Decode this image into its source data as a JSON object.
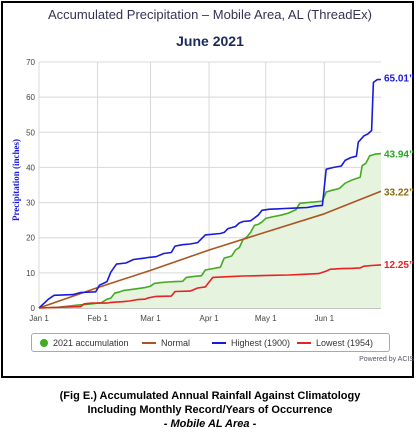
{
  "chart_data": {
    "type": "line",
    "title": "Accumulated Precipitation – Mobile Area, AL (ThreadEx)",
    "subtitle": "June 2021",
    "ylabel": "Precipitation (inches)",
    "xlabel": "",
    "ylim": [
      0,
      70
    ],
    "yticks": [
      "0",
      "10",
      "20",
      "30",
      "40",
      "50",
      "60",
      "70"
    ],
    "xticks": [
      {
        "label": "Jan 1",
        "day": 0
      },
      {
        "label": "Feb 1",
        "day": 31
      },
      {
        "label": "Mar 1",
        "day": 59
      },
      {
        "label": "Apr 1",
        "day": 90
      },
      {
        "label": "May 1",
        "day": 120
      },
      {
        "label": "Jun 1",
        "day": 151
      }
    ],
    "xlim": [
      0,
      181
    ],
    "grid": true,
    "legend_position": "bottom",
    "credit": "Powered by ACIS",
    "series": [
      {
        "name": "2021 accumulation",
        "color": "#44aa22",
        "fill": "#e6f3df",
        "end_label": "43.94”",
        "points": [
          [
            0,
            0
          ],
          [
            10,
            0.2
          ],
          [
            20,
            0.8
          ],
          [
            28,
            1.2
          ],
          [
            33,
            1.5
          ],
          [
            36,
            2.5
          ],
          [
            38,
            2.8
          ],
          [
            40,
            4.2
          ],
          [
            42,
            4.5
          ],
          [
            45,
            5
          ],
          [
            48,
            5.2
          ],
          [
            52,
            5.5
          ],
          [
            56,
            5.8
          ],
          [
            59,
            6.2
          ],
          [
            61,
            7
          ],
          [
            64,
            7.2
          ],
          [
            68,
            7.4
          ],
          [
            72,
            7.5
          ],
          [
            76,
            7.6
          ],
          [
            78,
            8.7
          ],
          [
            82,
            9
          ],
          [
            86,
            9.2
          ],
          [
            88,
            10.8
          ],
          [
            92,
            11.2
          ],
          [
            96,
            11.6
          ],
          [
            98,
            14.2
          ],
          [
            102,
            14.8
          ],
          [
            104,
            16.5
          ],
          [
            106,
            17.2
          ],
          [
            108,
            19.5
          ],
          [
            110,
            20.2
          ],
          [
            112,
            21.5
          ],
          [
            114,
            23.5
          ],
          [
            116,
            23.8
          ],
          [
            118,
            24.5
          ],
          [
            120,
            25.5
          ],
          [
            124,
            26
          ],
          [
            128,
            26.4
          ],
          [
            132,
            27
          ],
          [
            136,
            28
          ],
          [
            138,
            29.8
          ],
          [
            142,
            30
          ],
          [
            146,
            30.2
          ],
          [
            150,
            30.4
          ],
          [
            152,
            33
          ],
          [
            155,
            33.5
          ],
          [
            159,
            34
          ],
          [
            162,
            35.5
          ],
          [
            166,
            36.5
          ],
          [
            170,
            37.2
          ],
          [
            171,
            40.5
          ],
          [
            173,
            41.2
          ],
          [
            175,
            43.3
          ],
          [
            178,
            43.8
          ],
          [
            181,
            43.94
          ]
        ]
      },
      {
        "name": "Normal",
        "color": "#aa5522",
        "end_label": "33.22”",
        "points": [
          [
            0,
            0
          ],
          [
            31,
            5.8
          ],
          [
            59,
            10.7
          ],
          [
            90,
            16.5
          ],
          [
            120,
            21.6
          ],
          [
            151,
            26.8
          ],
          [
            181,
            33.22
          ]
        ]
      },
      {
        "name": "Highest (1900)",
        "color": "#1a1adc",
        "end_label": "65.01”",
        "points": [
          [
            0,
            0
          ],
          [
            5,
            2.5
          ],
          [
            8,
            3.6
          ],
          [
            18,
            3.8
          ],
          [
            22,
            4.4
          ],
          [
            30,
            4.6
          ],
          [
            32,
            6.5
          ],
          [
            36,
            7.5
          ],
          [
            38,
            10.2
          ],
          [
            41,
            12.5
          ],
          [
            46,
            12.8
          ],
          [
            50,
            13.8
          ],
          [
            56,
            14.2
          ],
          [
            58,
            14.4
          ],
          [
            62,
            14.6
          ],
          [
            66,
            15.5
          ],
          [
            70,
            15.8
          ],
          [
            72,
            17.6
          ],
          [
            76,
            18
          ],
          [
            80,
            18.2
          ],
          [
            84,
            18.6
          ],
          [
            88,
            20.8
          ],
          [
            96,
            21.2
          ],
          [
            98,
            21.5
          ],
          [
            100,
            22.6
          ],
          [
            104,
            23.2
          ],
          [
            106,
            24.2
          ],
          [
            108,
            24.6
          ],
          [
            112,
            24.8
          ],
          [
            116,
            26.4
          ],
          [
            118,
            27.8
          ],
          [
            122,
            28.1
          ],
          [
            126,
            28.2
          ],
          [
            130,
            28.3
          ],
          [
            134,
            28.4
          ],
          [
            142,
            28.6
          ],
          [
            144,
            28.8
          ],
          [
            146,
            29
          ],
          [
            150,
            29.2
          ],
          [
            152,
            39.5
          ],
          [
            156,
            40
          ],
          [
            160,
            40.4
          ],
          [
            162,
            42
          ],
          [
            165,
            42.8
          ],
          [
            168,
            43.2
          ],
          [
            169,
            47.2
          ],
          [
            172,
            49
          ],
          [
            174,
            49.5
          ],
          [
            176,
            50.5
          ],
          [
            177,
            64.2
          ],
          [
            179,
            65
          ],
          [
            181,
            65.01
          ]
        ]
      },
      {
        "name": "Lowest (1954)",
        "color": "#e82222",
        "end_label": "12.25”",
        "points": [
          [
            0,
            0
          ],
          [
            22,
            0.4
          ],
          [
            24,
            1.2
          ],
          [
            28,
            1.4
          ],
          [
            36,
            1.4
          ],
          [
            38,
            1.6
          ],
          [
            44,
            1.8
          ],
          [
            48,
            2
          ],
          [
            52,
            2.4
          ],
          [
            56,
            2.5
          ],
          [
            58,
            2.9
          ],
          [
            62,
            3.3
          ],
          [
            70,
            3.4
          ],
          [
            72,
            4.7
          ],
          [
            80,
            4.8
          ],
          [
            84,
            5.7
          ],
          [
            88,
            6
          ],
          [
            92,
            8.7
          ],
          [
            100,
            8.9
          ],
          [
            108,
            9.1
          ],
          [
            116,
            9.2
          ],
          [
            124,
            9.3
          ],
          [
            132,
            9.4
          ],
          [
            140,
            9.6
          ],
          [
            148,
            9.8
          ],
          [
            152,
            10.5
          ],
          [
            154,
            11
          ],
          [
            160,
            11.2
          ],
          [
            166,
            11.3
          ],
          [
            170,
            11.4
          ],
          [
            172,
            11.9
          ],
          [
            176,
            12.1
          ],
          [
            181,
            12.25
          ]
        ]
      }
    ]
  },
  "caption": {
    "line1": "(Fig E.) Accumulated Annual Rainfall Against  Climatology",
    "line2": "Including Monthly Record/Years of Occurrence",
    "line3": "- Mobile AL Area -"
  }
}
